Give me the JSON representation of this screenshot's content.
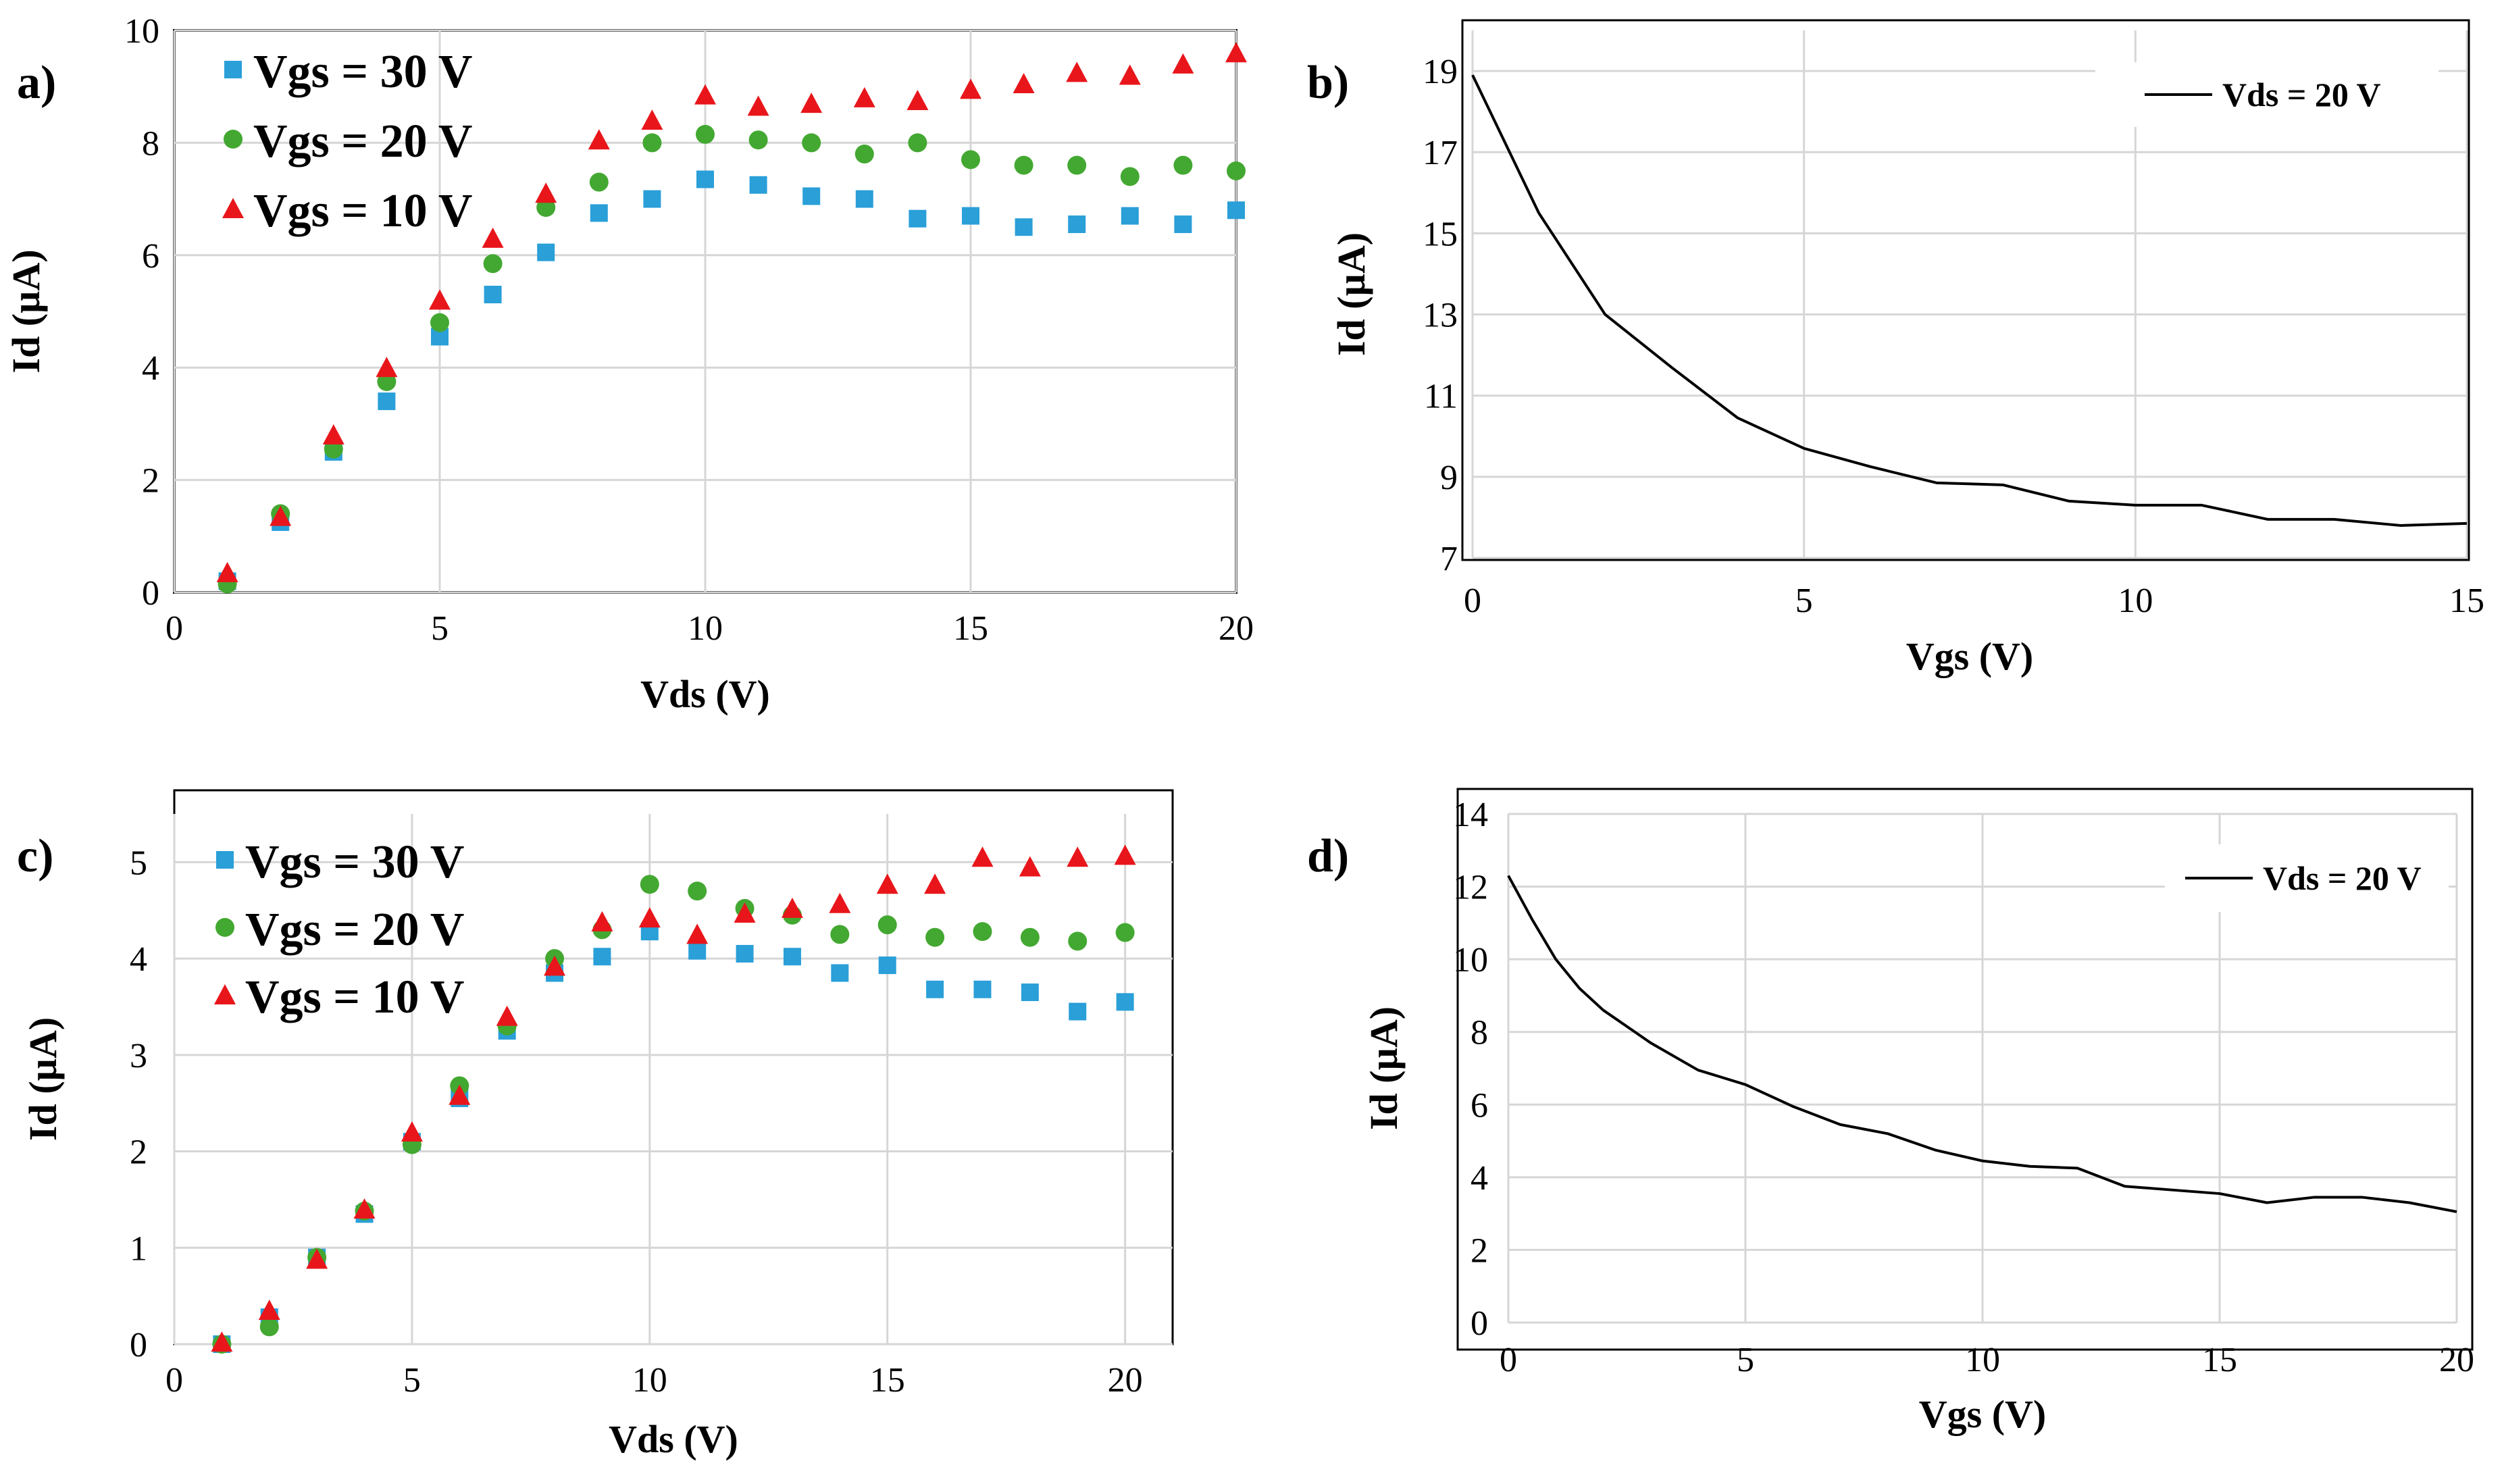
{
  "chart_data": [
    {
      "id": "a",
      "type": "scatter",
      "panel_label": "a)",
      "xlabel": "Vds (V)",
      "ylabel": "Id (µA)",
      "xlim": [
        0,
        20
      ],
      "ylim": [
        0,
        10
      ],
      "xticks": [
        0,
        5,
        10,
        15,
        20
      ],
      "yticks": [
        0,
        2,
        4,
        6,
        8,
        10
      ],
      "grid": true,
      "legend_position": "top-left",
      "x": [
        1,
        2,
        3,
        4,
        5,
        6,
        7,
        8,
        9,
        10,
        11,
        12,
        13,
        14,
        15,
        16,
        17,
        18,
        19,
        20
      ],
      "series": [
        {
          "name": "Vgs = 30 V",
          "marker": "square",
          "color": "#2a9fd8",
          "values": [
            0.2,
            1.25,
            2.5,
            3.4,
            4.55,
            5.3,
            6.05,
            6.75,
            7.0,
            7.35,
            7.25,
            7.05,
            7.0,
            6.65,
            6.7,
            6.5,
            6.55,
            6.7,
            6.55,
            6.8
          ]
        },
        {
          "name": "Vgs = 20 V",
          "marker": "circle",
          "color": "#43a831",
          "values": [
            0.15,
            1.4,
            2.55,
            3.75,
            4.8,
            5.85,
            6.85,
            7.3,
            8.0,
            8.15,
            8.05,
            8.0,
            7.8,
            8.0,
            7.7,
            7.6,
            7.6,
            7.4,
            7.6,
            7.5
          ]
        },
        {
          "name": "Vgs = 10 V",
          "marker": "triangle",
          "color": "#e8161b",
          "values": [
            0.35,
            1.35,
            2.8,
            4.0,
            5.2,
            6.3,
            7.1,
            8.05,
            8.4,
            8.85,
            8.65,
            8.7,
            8.8,
            8.75,
            8.95,
            9.05,
            9.25,
            9.2,
            9.4,
            9.6
          ]
        }
      ]
    },
    {
      "id": "b",
      "type": "line",
      "panel_label": "b)",
      "xlabel": "Vgs (V)",
      "ylabel": "Id (µA)",
      "xlim": [
        0,
        15
      ],
      "ylim": [
        7,
        20
      ],
      "xticks": [
        0,
        5,
        10,
        15
      ],
      "yticks": [
        7,
        9,
        11,
        13,
        15,
        17,
        19
      ],
      "grid": true,
      "legend_position": "top-right",
      "series": [
        {
          "name": "Vds = 20 V",
          "color": "#000000",
          "x": [
            0,
            1,
            2,
            3,
            4,
            5,
            6,
            7,
            8,
            9,
            10,
            11,
            12,
            13,
            14,
            15
          ],
          "values": [
            18.9,
            15.5,
            13.0,
            11.7,
            10.45,
            9.7,
            9.25,
            8.85,
            8.8,
            8.4,
            8.3,
            8.3,
            7.95,
            7.95,
            7.8,
            7.85
          ]
        }
      ]
    },
    {
      "id": "c",
      "type": "scatter",
      "panel_label": "c)",
      "xlabel": "Vds (V)",
      "ylabel": "Id (µA)",
      "xlim": [
        0,
        21
      ],
      "ylim": [
        0,
        5.5
      ],
      "xticks": [
        0,
        5,
        10,
        15,
        20
      ],
      "yticks": [
        0,
        1,
        2,
        3,
        4,
        5
      ],
      "grid": true,
      "legend_position": "top-left",
      "x": [
        1,
        2,
        3,
        4,
        5,
        6,
        7,
        8,
        9,
        10,
        11,
        12,
        13,
        14,
        15,
        16,
        17,
        18,
        19,
        20
      ],
      "series": [
        {
          "name": "Vgs = 30 V",
          "marker": "square",
          "color": "#2a9fd8",
          "values": [
            0.0,
            0.28,
            0.9,
            1.35,
            2.1,
            2.55,
            3.25,
            3.85,
            4.02,
            4.28,
            4.08,
            4.05,
            4.02,
            3.85,
            3.93,
            3.68,
            3.68,
            3.65,
            3.45,
            3.55
          ]
        },
        {
          "name": "Vgs = 20 V",
          "marker": "circle",
          "color": "#43a831",
          "values": [
            0.0,
            0.18,
            0.9,
            1.38,
            2.07,
            2.68,
            3.3,
            4.0,
            4.3,
            4.77,
            4.7,
            4.52,
            4.45,
            4.25,
            4.35,
            4.22,
            4.28,
            4.22,
            4.18,
            4.27
          ]
        },
        {
          "name": "Vgs = 10 V",
          "marker": "triangle",
          "color": "#e8161b",
          "values": [
            0.02,
            0.35,
            0.88,
            1.4,
            2.2,
            2.58,
            3.4,
            3.92,
            4.38,
            4.42,
            4.25,
            4.47,
            4.52,
            4.57,
            4.77,
            4.77,
            5.05,
            4.95,
            5.05,
            5.07
          ]
        }
      ]
    },
    {
      "id": "d",
      "type": "line",
      "panel_label": "d)",
      "xlabel": "Vgs (V)",
      "ylabel": "Id (µA)",
      "xlim": [
        0,
        20
      ],
      "ylim": [
        0,
        14
      ],
      "xticks": [
        0,
        5,
        10,
        15,
        20
      ],
      "yticks": [
        0,
        2,
        4,
        6,
        8,
        10,
        12,
        14
      ],
      "grid": true,
      "legend_position": "top-right",
      "series": [
        {
          "name": "Vds = 20 V",
          "color": "#000000",
          "x": [
            0,
            0.5,
            1,
            1.5,
            2,
            3,
            4,
            5,
            6,
            7,
            8,
            9,
            10,
            11,
            12,
            13,
            14,
            15,
            16,
            17,
            18,
            19,
            20
          ],
          "values": [
            12.3,
            11.1,
            10.0,
            9.2,
            8.6,
            7.7,
            6.95,
            6.55,
            5.95,
            5.45,
            5.2,
            4.75,
            4.45,
            4.3,
            4.25,
            3.75,
            3.65,
            3.55,
            3.3,
            3.45,
            3.45,
            3.3,
            3.05
          ]
        }
      ]
    }
  ]
}
